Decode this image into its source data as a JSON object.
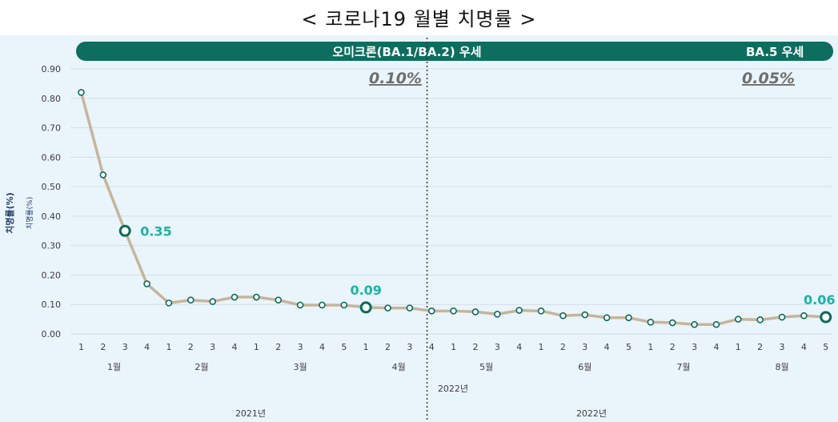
{
  "title": "< 코로나19 월별 치명률 >",
  "chart_data": {
    "type": "line",
    "ylabel": "치명률(%)",
    "ylim": [
      0,
      0.9
    ],
    "yticks": [
      "0.00",
      "0.10",
      "0.20",
      "0.30",
      "0.40",
      "0.50",
      "0.60",
      "0.70",
      "0.80",
      "0.90"
    ],
    "x": [
      "1",
      "2",
      "3",
      "4",
      "1",
      "2",
      "3",
      "4",
      "1",
      "2",
      "3",
      "4",
      "5",
      "1",
      "2",
      "3",
      "4",
      "1",
      "2",
      "3",
      "4",
      "1",
      "2",
      "3",
      "4",
      "5",
      "1",
      "2",
      "3",
      "4",
      "1",
      "2",
      "3",
      "4",
      "5"
    ],
    "values": [
      0.82,
      0.54,
      0.35,
      0.17,
      0.105,
      0.115,
      0.11,
      0.125,
      0.125,
      0.115,
      0.098,
      0.098,
      0.098,
      0.09,
      0.088,
      0.088,
      0.078,
      0.078,
      0.075,
      0.067,
      0.08,
      0.078,
      0.062,
      0.065,
      0.055,
      0.055,
      0.04,
      0.038,
      0.032,
      0.032,
      0.05,
      0.048,
      0.057,
      0.062,
      0.057
    ],
    "months": [
      {
        "label": "1월",
        "from": 0,
        "to": 3
      },
      {
        "label": "2월",
        "from": 4,
        "to": 7
      },
      {
        "label": "3월",
        "from": 8,
        "to": 12
      },
      {
        "label": "4월",
        "from": 13,
        "to": 16
      },
      {
        "label": "5월",
        "from": 17,
        "to": 20
      },
      {
        "label": "6월",
        "from": 21,
        "to": 25
      },
      {
        "label": "7월",
        "from": 26,
        "to": 29
      },
      {
        "label": "8월",
        "from": 30,
        "to": 34
      }
    ],
    "mid_label": "2022년",
    "years": [
      {
        "label": "2021년",
        "from": 0,
        "to": 15
      },
      {
        "label": "2022년",
        "from": 16,
        "to": 34
      }
    ],
    "divider_after_index": 15,
    "highlights": [
      {
        "index": 2,
        "label": "0.35"
      },
      {
        "index": 13,
        "label": "0.09"
      },
      {
        "index": 34,
        "label": "0.06"
      }
    ],
    "periods": [
      {
        "label": "오미크론(BA.1/BA.2) 우세",
        "rate": "0.10%",
        "from": 0,
        "to": 29
      },
      {
        "label": "BA.5 우세",
        "rate": "0.05%",
        "from": 30,
        "to": 34
      }
    ],
    "colors": {
      "line": "#c6b59a",
      "marker": "#0b6b5a",
      "banner": "#0d6e5f",
      "callout": "#16b5a3",
      "background": "#eaf4fb"
    }
  }
}
